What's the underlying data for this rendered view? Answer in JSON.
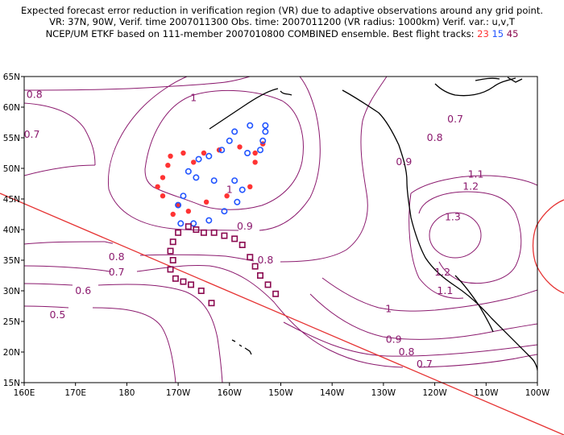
{
  "header": {
    "line1": "Expected forecast error reduction in verification region (VR) due to adaptive observations around any grid point.",
    "line2": "VR: 37N, 90W, Verif. time 2007011300  Obs. time: 2007011200  (VR radius: 1000km)   Verif. var.: u,v,T",
    "line3_prefix": "NCEP/UM ETKF based on 111-member 2007010800 COMBINED ensemble.  Best flight tracks:",
    "track_a": "23",
    "track_b": "15",
    "track_c": "45"
  },
  "axes": {
    "x_ticks": [
      "160E",
      "170E",
      "180",
      "170W",
      "160W",
      "150W",
      "140W",
      "130W",
      "120W",
      "110W",
      "100W"
    ],
    "y_ticks": [
      "15N",
      "20N",
      "25N",
      "30N",
      "35N",
      "40N",
      "45N",
      "50N",
      "55N",
      "60N",
      "65N"
    ]
  },
  "contour_labels": [
    {
      "text": "0.8",
      "lon": 162,
      "lat": 61.5
    },
    {
      "text": "0.7",
      "lon": 161.5,
      "lat": 55
    },
    {
      "text": "1",
      "lon": -167,
      "lat": 61
    },
    {
      "text": "1",
      "lon": -160,
      "lat": 46
    },
    {
      "text": "0.9",
      "lon": -157,
      "lat": 40
    },
    {
      "text": "0.8",
      "lon": 178,
      "lat": 35
    },
    {
      "text": "0.7",
      "lon": 178,
      "lat": 32.5
    },
    {
      "text": "0.6",
      "lon": 171.5,
      "lat": 29.5
    },
    {
      "text": "0.5",
      "lon": 166.5,
      "lat": 25.5
    },
    {
      "text": "0.8",
      "lon": -153,
      "lat": 34.5
    },
    {
      "text": "0.7",
      "lon": -116,
      "lat": 57.5
    },
    {
      "text": "0.8",
      "lon": -120,
      "lat": 54.5
    },
    {
      "text": "0.9",
      "lon": -126,
      "lat": 50.5
    },
    {
      "text": "1.1",
      "lon": -112,
      "lat": 48.5
    },
    {
      "text": "1.2",
      "lon": -113,
      "lat": 46.5
    },
    {
      "text": "1.3",
      "lon": -116.5,
      "lat": 41.5
    },
    {
      "text": "1.2",
      "lon": -118.5,
      "lat": 32.5
    },
    {
      "text": "1.1",
      "lon": -118,
      "lat": 29.5
    },
    {
      "text": "1",
      "lon": -129,
      "lat": 26.5
    },
    {
      "text": "0.9",
      "lon": -128,
      "lat": 21.5
    },
    {
      "text": "0.8",
      "lon": -125.5,
      "lat": 19.5
    },
    {
      "text": "0.7",
      "lon": -122,
      "lat": 17.5
    }
  ],
  "markers": {
    "red_dots": [
      [
        -171.5,
        52
      ],
      [
        -169,
        52.5
      ],
      [
        -167,
        51
      ],
      [
        -165,
        52.5
      ],
      [
        -162,
        53
      ],
      [
        -158,
        53.5
      ],
      [
        -155,
        52.5
      ],
      [
        -153.5,
        54
      ],
      [
        -172,
        50.5
      ],
      [
        -173,
        48.5
      ],
      [
        -174,
        47
      ],
      [
        -173,
        45.5
      ],
      [
        -170,
        44
      ],
      [
        -168,
        43
      ],
      [
        -164.5,
        44.5
      ],
      [
        -160.5,
        45.5
      ],
      [
        -156,
        47
      ],
      [
        -155,
        51
      ],
      [
        -171,
        42.5
      ]
    ],
    "blue_circles": [
      [
        -159,
        56
      ],
      [
        -156,
        57
      ],
      [
        -153,
        57
      ],
      [
        -153,
        56
      ],
      [
        -153.5,
        54.5
      ],
      [
        -154,
        53
      ],
      [
        -156.5,
        52.5
      ],
      [
        -160,
        54.5
      ],
      [
        -161.5,
        53
      ],
      [
        -164,
        52
      ],
      [
        -166,
        51.5
      ],
      [
        -168,
        49.5
      ],
      [
        -166.5,
        48.5
      ],
      [
        -163,
        48
      ],
      [
        -159,
        48
      ],
      [
        -157.5,
        46.5
      ],
      [
        -158.5,
        44.5
      ],
      [
        -161,
        43
      ],
      [
        -164,
        41.5
      ],
      [
        -167,
        41
      ],
      [
        -169.5,
        41
      ],
      [
        -170,
        44
      ],
      [
        -169,
        45.5
      ]
    ],
    "purple_squares": [
      [
        -151,
        29.5
      ],
      [
        -152.5,
        31
      ],
      [
        -154,
        32.5
      ],
      [
        -155,
        34
      ],
      [
        -156,
        35.5
      ],
      [
        -157.5,
        37.5
      ],
      [
        -159,
        38.5
      ],
      [
        -161,
        39
      ],
      [
        -163,
        39.5
      ],
      [
        -165,
        39.5
      ],
      [
        -166.5,
        40
      ],
      [
        -168,
        40.5
      ],
      [
        -170,
        39.5
      ],
      [
        -171,
        38
      ],
      [
        -171.5,
        36.5
      ],
      [
        -171,
        35
      ],
      [
        -171.5,
        33.5
      ],
      [
        -170.5,
        32
      ],
      [
        -169,
        31.5
      ],
      [
        -167.5,
        31
      ],
      [
        -165.5,
        30
      ],
      [
        -163.5,
        28
      ]
    ]
  }
}
